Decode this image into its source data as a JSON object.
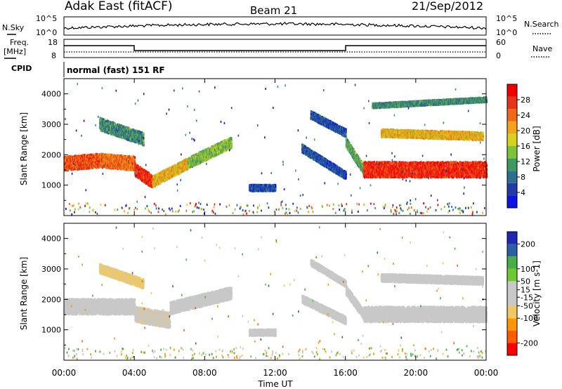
{
  "header": {
    "title": "Adak East (fitACF)",
    "beam": "Beam 21",
    "date": "21/Sep/2012",
    "cpid_label": "CPID",
    "cpid_value": "normal (fast) 151 RF"
  },
  "noise_panel": {
    "left_label": "N.Sky",
    "right_label": "N.Search",
    "ticks": [
      "10^5",
      "10^0"
    ]
  },
  "freq_panel": {
    "left_label_line1": "Freq.",
    "left_label_line2": "[MHz]",
    "left_ticks": [
      "18",
      "8"
    ],
    "right_label": "Nave",
    "right_ticks": [
      "60",
      "0"
    ]
  },
  "time_axis": {
    "label": "Time UT",
    "ticks": [
      "00:00",
      "04:00",
      "08:00",
      "12:00",
      "16:00",
      "20:00",
      "00:00"
    ]
  },
  "colors": {
    "power": [
      "#0a14e6",
      "#233ba4",
      "#2d6f90",
      "#3e9a62",
      "#7ec23a",
      "#d6d21e",
      "#f2a31a",
      "#ef6a16",
      "#e6331a",
      "#f00000"
    ],
    "velocity": [
      "#ff0000",
      "#ff5a00",
      "#ff9600",
      "#f0c864",
      "#c8c8c8",
      "#c8c8c8",
      "#6ec832",
      "#46af46",
      "#2d5fa5",
      "#1e28b4"
    ]
  },
  "chart_data": [
    {
      "type": "heatmap",
      "name": "power",
      "ylabel": "Slant Range [km]",
      "yticks": [
        "1000",
        "2000",
        "3000",
        "4000"
      ],
      "ylim": [
        0,
        4500
      ],
      "xlim": [
        0,
        24
      ],
      "colorbar": {
        "label": "Power [dB]",
        "ticks": [
          "28",
          "24",
          "20",
          "16",
          "12",
          "8",
          "4"
        ],
        "range": [
          0,
          32
        ]
      },
      "bands": [
        {
          "start_hr": 0.0,
          "end_hr": 2.0,
          "range_center_km": [
            1700,
            1800
          ],
          "width_km": 450,
          "value": 26
        },
        {
          "start_hr": 2.0,
          "end_hr": 4.0,
          "range_center_km": [
            1800,
            1700
          ],
          "width_km": 450,
          "value": 24
        },
        {
          "start_hr": 4.0,
          "end_hr": 5.0,
          "range_center_km": [
            1500,
            1100
          ],
          "width_km": 400,
          "value": 28
        },
        {
          "start_hr": 5.0,
          "end_hr": 7.0,
          "range_center_km": [
            1100,
            1700
          ],
          "width_km": 350,
          "value": 20
        },
        {
          "start_hr": 7.0,
          "end_hr": 9.5,
          "range_center_km": [
            1700,
            2400
          ],
          "width_km": 350,
          "value": 14
        },
        {
          "start_hr": 2.0,
          "end_hr": 4.5,
          "range_center_km": [
            3000,
            2500
          ],
          "width_km": 400,
          "value": 10
        },
        {
          "start_hr": 13.5,
          "end_hr": 16.0,
          "range_center_km": [
            2200,
            1300
          ],
          "width_km": 250,
          "value": 6
        },
        {
          "start_hr": 14.0,
          "end_hr": 16.0,
          "range_center_km": [
            3300,
            2700
          ],
          "width_km": 250,
          "value": 6
        },
        {
          "start_hr": 16.0,
          "end_hr": 17.0,
          "range_center_km": [
            2400,
            1500
          ],
          "width_km": 300,
          "value": 12
        },
        {
          "start_hr": 17.0,
          "end_hr": 24.0,
          "range_center_km": [
            1500,
            1500
          ],
          "width_km": 500,
          "value": 28
        },
        {
          "start_hr": 18.0,
          "end_hr": 23.8,
          "range_center_km": [
            2700,
            2600
          ],
          "width_km": 250,
          "value": 20
        },
        {
          "start_hr": 17.5,
          "end_hr": 24.0,
          "range_center_km": [
            3600,
            3800
          ],
          "width_km": 150,
          "value": 10
        },
        {
          "start_hr": 10.5,
          "end_hr": 12.0,
          "range_center_km": [
            900,
            900
          ],
          "width_km": 200,
          "value": 6
        }
      ]
    },
    {
      "type": "heatmap",
      "name": "velocity",
      "ylabel": "Slant Range [km]",
      "yticks": [
        "1000",
        "2000",
        "3000",
        "4000"
      ],
      "ylim": [
        0,
        4500
      ],
      "xlim": [
        0,
        24
      ],
      "colorbar": {
        "label": "Velocity [m s-1]",
        "ticks": [
          "200",
          "100",
          "50",
          "15",
          "-15",
          "-50",
          "-100",
          "-200"
        ],
        "range": [
          -250,
          250
        ]
      },
      "bands": [
        {
          "start_hr": 0.0,
          "end_hr": 4.0,
          "range_center_km": [
            1750,
            1750
          ],
          "width_km": 500,
          "value": 0
        },
        {
          "start_hr": 4.0,
          "end_hr": 6.0,
          "range_center_km": [
            1500,
            1300
          ],
          "width_km": 500,
          "value": -40
        },
        {
          "start_hr": 6.0,
          "end_hr": 9.5,
          "range_center_km": [
            1700,
            2200
          ],
          "width_km": 400,
          "value": 0
        },
        {
          "start_hr": 2.0,
          "end_hr": 4.5,
          "range_center_km": [
            3000,
            2500
          ],
          "width_km": 300,
          "value": -60
        },
        {
          "start_hr": 13.5,
          "end_hr": 16.0,
          "range_center_km": [
            2000,
            1300
          ],
          "width_km": 250,
          "value": 30
        },
        {
          "start_hr": 14.0,
          "end_hr": 16.0,
          "range_center_km": [
            3200,
            2500
          ],
          "width_km": 200,
          "value": 30
        },
        {
          "start_hr": 16.0,
          "end_hr": 17.0,
          "range_center_km": [
            2300,
            1500
          ],
          "width_km": 300,
          "value": 30
        },
        {
          "start_hr": 17.0,
          "end_hr": 24.0,
          "range_center_km": [
            1500,
            1500
          ],
          "width_km": 500,
          "value": 0
        },
        {
          "start_hr": 18.0,
          "end_hr": 23.8,
          "range_center_km": [
            2700,
            2600
          ],
          "width_km": 250,
          "value": 0
        },
        {
          "start_hr": 10.5,
          "end_hr": 12.0,
          "range_center_km": [
            900,
            900
          ],
          "width_km": 200,
          "value": -30
        }
      ]
    }
  ]
}
